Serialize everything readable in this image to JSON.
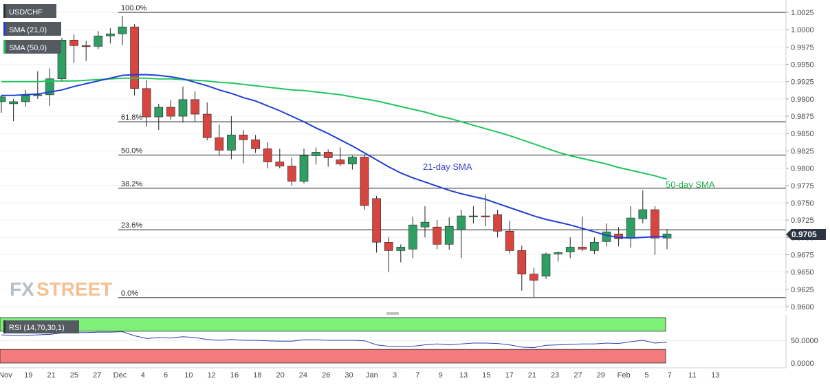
{
  "chart_data": [
    {
      "type": "candlestick",
      "symbol": "USD/CHF",
      "indicators": [
        "SMA (21,0)",
        "SMA (50,0)"
      ],
      "indicator_colors": {
        "sma21": "#1f3fd6",
        "sma50": "#22c55e"
      },
      "candle_colors": {
        "up": "#2e9e63",
        "down": "#d64540"
      },
      "y_ticks": [
        "1.0025",
        "1.0000",
        "0.9975",
        "0.9950",
        "0.9925",
        "0.9900",
        "0.9875",
        "0.9850",
        "0.9825",
        "0.9800",
        "0.9775",
        "0.9750",
        "0.9725",
        "0.9700",
        "0.9675",
        "0.9650",
        "0.9625",
        "0.9600"
      ],
      "ylim": [
        0.9595,
        1.0035
      ],
      "x_ticks": [
        "Nov",
        "19",
        "21",
        "25",
        "27",
        "Dec",
        "4",
        "6",
        "10",
        "12",
        "16",
        "18",
        "20",
        "24",
        "26",
        "30",
        "Jan",
        "3",
        "7",
        "9",
        "13",
        "15",
        "17",
        "21",
        "23",
        "27",
        "29",
        "Feb",
        "5",
        "7",
        "11",
        "13"
      ],
      "last_price": "0.9705",
      "fibonacci_levels": [
        {
          "label": "100.0%",
          "value": 1.0025
        },
        {
          "label": "61.8%",
          "value": 0.9867
        },
        {
          "label": "50.0%",
          "value": 0.9819
        },
        {
          "label": "38.2%",
          "value": 0.9771
        },
        {
          "label": "23.6%",
          "value": 0.9711
        },
        {
          "label": "0.0%",
          "value": 0.9613
        }
      ],
      "annotations": [
        "21-day SMA",
        "50-day SMA"
      ],
      "candles": [
        {
          "o": 0.9896,
          "h": 0.9906,
          "l": 0.988,
          "c": 0.9903
        },
        {
          "o": 0.9893,
          "h": 0.99,
          "l": 0.9868,
          "c": 0.9896
        },
        {
          "o": 0.9896,
          "h": 0.9913,
          "l": 0.9889,
          "c": 0.9905
        },
        {
          "o": 0.9905,
          "h": 0.994,
          "l": 0.99,
          "c": 0.9906
        },
        {
          "o": 0.9906,
          "h": 0.9944,
          "l": 0.989,
          "c": 0.9929
        },
        {
          "o": 0.9929,
          "h": 0.9988,
          "l": 0.9925,
          "c": 0.9985
        },
        {
          "o": 0.9985,
          "h": 0.9993,
          "l": 0.9952,
          "c": 0.9977
        },
        {
          "o": 0.9977,
          "h": 0.9984,
          "l": 0.9955,
          "c": 0.9976
        },
        {
          "o": 0.9976,
          "h": 0.9998,
          "l": 0.9972,
          "c": 0.9991
        },
        {
          "o": 0.9991,
          "h": 1.0002,
          "l": 0.998,
          "c": 0.9994
        },
        {
          "o": 0.9994,
          "h": 1.002,
          "l": 0.9978,
          "c": 1.0004
        },
        {
          "o": 1.0004,
          "h": 1.0008,
          "l": 0.9905,
          "c": 0.9915
        },
        {
          "o": 0.9915,
          "h": 0.9927,
          "l": 0.986,
          "c": 0.9874
        },
        {
          "o": 0.9874,
          "h": 0.9893,
          "l": 0.9855,
          "c": 0.9888
        },
        {
          "o": 0.9888,
          "h": 0.9898,
          "l": 0.987,
          "c": 0.9875
        },
        {
          "o": 0.9875,
          "h": 0.9918,
          "l": 0.9866,
          "c": 0.9899
        },
        {
          "o": 0.9899,
          "h": 0.9911,
          "l": 0.9867,
          "c": 0.9878
        },
        {
          "o": 0.9878,
          "h": 0.9895,
          "l": 0.984,
          "c": 0.9844
        },
        {
          "o": 0.9844,
          "h": 0.9863,
          "l": 0.9818,
          "c": 0.9826
        },
        {
          "o": 0.9826,
          "h": 0.9875,
          "l": 0.9813,
          "c": 0.9848
        },
        {
          "o": 0.9848,
          "h": 0.9855,
          "l": 0.9807,
          "c": 0.9841
        },
        {
          "o": 0.9841,
          "h": 0.9848,
          "l": 0.9822,
          "c": 0.9828
        },
        {
          "o": 0.9828,
          "h": 0.9837,
          "l": 0.98,
          "c": 0.9809
        },
        {
          "o": 0.9809,
          "h": 0.9828,
          "l": 0.98,
          "c": 0.9803
        },
        {
          "o": 0.9803,
          "h": 0.9815,
          "l": 0.9775,
          "c": 0.9781
        },
        {
          "o": 0.9781,
          "h": 0.9828,
          "l": 0.9778,
          "c": 0.9818
        },
        {
          "o": 0.9818,
          "h": 0.983,
          "l": 0.9805,
          "c": 0.9823
        },
        {
          "o": 0.9823,
          "h": 0.9827,
          "l": 0.9802,
          "c": 0.9815
        },
        {
          "o": 0.9812,
          "h": 0.983,
          "l": 0.9803,
          "c": 0.9806
        },
        {
          "o": 0.9806,
          "h": 0.9818,
          "l": 0.9798,
          "c": 0.9816
        },
        {
          "o": 0.9816,
          "h": 0.982,
          "l": 0.974,
          "c": 0.9746
        },
        {
          "o": 0.9756,
          "h": 0.976,
          "l": 0.9678,
          "c": 0.9693
        },
        {
          "o": 0.9693,
          "h": 0.97,
          "l": 0.965,
          "c": 0.9681
        },
        {
          "o": 0.9681,
          "h": 0.969,
          "l": 0.9664,
          "c": 0.9686
        },
        {
          "o": 0.9683,
          "h": 0.973,
          "l": 0.967,
          "c": 0.9718
        },
        {
          "o": 0.9715,
          "h": 0.9745,
          "l": 0.97,
          "c": 0.9722
        },
        {
          "o": 0.9715,
          "h": 0.9725,
          "l": 0.9683,
          "c": 0.969
        },
        {
          "o": 0.969,
          "h": 0.9729,
          "l": 0.9682,
          "c": 0.9716
        },
        {
          "o": 0.9711,
          "h": 0.974,
          "l": 0.967,
          "c": 0.9731
        },
        {
          "o": 0.973,
          "h": 0.9745,
          "l": 0.972,
          "c": 0.9731
        },
        {
          "o": 0.9731,
          "h": 0.9762,
          "l": 0.9716,
          "c": 0.973
        },
        {
          "o": 0.9733,
          "h": 0.974,
          "l": 0.97,
          "c": 0.9709
        },
        {
          "o": 0.9709,
          "h": 0.9724,
          "l": 0.9677,
          "c": 0.9681
        },
        {
          "o": 0.9681,
          "h": 0.9688,
          "l": 0.9623,
          "c": 0.9647
        },
        {
          "o": 0.9647,
          "h": 0.9656,
          "l": 0.9614,
          "c": 0.9638
        },
        {
          "o": 0.9644,
          "h": 0.9678,
          "l": 0.964,
          "c": 0.9676
        },
        {
          "o": 0.9676,
          "h": 0.968,
          "l": 0.9665,
          "c": 0.9678
        },
        {
          "o": 0.9679,
          "h": 0.97,
          "l": 0.967,
          "c": 0.9686
        },
        {
          "o": 0.9686,
          "h": 0.973,
          "l": 0.968,
          "c": 0.9683
        },
        {
          "o": 0.9681,
          "h": 0.97,
          "l": 0.9676,
          "c": 0.9693
        },
        {
          "o": 0.9694,
          "h": 0.972,
          "l": 0.9687,
          "c": 0.9708
        },
        {
          "o": 0.9705,
          "h": 0.9715,
          "l": 0.9687,
          "c": 0.9698
        },
        {
          "o": 0.9699,
          "h": 0.9745,
          "l": 0.9685,
          "c": 0.9728
        },
        {
          "o": 0.9727,
          "h": 0.9768,
          "l": 0.972,
          "c": 0.974
        },
        {
          "o": 0.974,
          "h": 0.9745,
          "l": 0.9675,
          "c": 0.9699
        },
        {
          "o": 0.9699,
          "h": 0.9712,
          "l": 0.9683,
          "c": 0.9705
        }
      ],
      "sma21": [
        0.9905,
        0.9905,
        0.9906,
        0.9907,
        0.991,
        0.9913,
        0.9918,
        0.9922,
        0.9926,
        0.993,
        0.9934,
        0.9935,
        0.9935,
        0.9934,
        0.9932,
        0.9929,
        0.9924,
        0.9919,
        0.9913,
        0.9908,
        0.9902,
        0.9897,
        0.989,
        0.9883,
        0.9875,
        0.9867,
        0.9858,
        0.985,
        0.9841,
        0.9832,
        0.9822,
        0.9812,
        0.9802,
        0.9793,
        0.9786,
        0.978,
        0.9774,
        0.9768,
        0.9763,
        0.9759,
        0.9755,
        0.9749,
        0.9743,
        0.9737,
        0.9731,
        0.9726,
        0.9722,
        0.9718,
        0.9713,
        0.9708,
        0.9703,
        0.97,
        0.9699,
        0.97,
        0.9701,
        0.9701
      ],
      "sma50": [
        0.9925,
        0.9925,
        0.9925,
        0.9925,
        0.9926,
        0.9926,
        0.9926,
        0.9927,
        0.9928,
        0.9929,
        0.993,
        0.993,
        0.993,
        0.9929,
        0.9929,
        0.9928,
        0.9927,
        0.9926,
        0.9924,
        0.9923,
        0.9921,
        0.9919,
        0.9917,
        0.9915,
        0.9913,
        0.9912,
        0.991,
        0.9908,
        0.9906,
        0.9903,
        0.99,
        0.9897,
        0.9893,
        0.9889,
        0.9885,
        0.9881,
        0.9876,
        0.9872,
        0.9867,
        0.9862,
        0.9857,
        0.9852,
        0.9847,
        0.9841,
        0.9835,
        0.9829,
        0.9823,
        0.9818,
        0.9814,
        0.981,
        0.9806,
        0.9801,
        0.9797,
        0.9793,
        0.9789,
        0.9784
      ]
    },
    {
      "type": "line",
      "title": "RSI (14,70,30,1)",
      "y_ticks": [
        "50.0000",
        "0.0000"
      ],
      "ylim": [
        0,
        100
      ],
      "overbought": 70,
      "oversold": 30,
      "zone_colors": {
        "overbought": "#7ef07a",
        "oversold": "#f47b7b"
      },
      "values": [
        62,
        61,
        61,
        62,
        63,
        66,
        67,
        67,
        68,
        68,
        69,
        60,
        54,
        56,
        55,
        58,
        56,
        52,
        50,
        52,
        50,
        50,
        49,
        48,
        48,
        51,
        51,
        50,
        50,
        50,
        49,
        40,
        37,
        36,
        37,
        40,
        42,
        40,
        42,
        44,
        44,
        43,
        40,
        35,
        34,
        39,
        40,
        41,
        42,
        42,
        44,
        43,
        47,
        50,
        44,
        46
      ]
    }
  ],
  "labels": {
    "pair": "USD/CHF",
    "sma21_tag": "SMA (21,0)",
    "sma50_tag": "SMA (50,0)",
    "sma21_note": "21-day SMA",
    "sma50_note": "50-day SMA",
    "watermark_left": "FX",
    "watermark_right": "STREET"
  }
}
